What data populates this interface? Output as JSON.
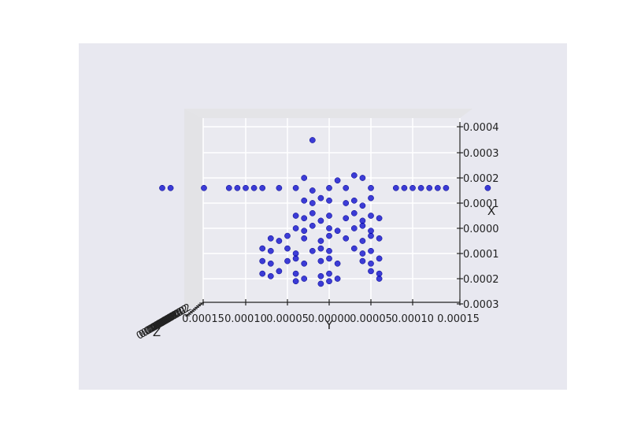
{
  "chart_data": {
    "type": "scatter",
    "projection": "3d",
    "title": "",
    "xlabel": "Y",
    "ylabel": "X",
    "zlabel": "Z",
    "grid": true,
    "y_axis_ticks": [
      "0.00015",
      "0.00010",
      "0.00005",
      "0.00000",
      "0.00005",
      "0.00010",
      "0.00015"
    ],
    "x_axis_ticks": [
      "0.0004",
      "0.0003",
      "0.0002",
      "0.0001",
      "0.0000",
      "0.0001",
      "0.0002",
      "0.0003"
    ],
    "z_axis_ticks": [
      "0.0002",
      "0.0002",
      "0.0002",
      "0.0002",
      "0.0002",
      "0.0002",
      "0.0002",
      "0.0002",
      "0.0002",
      "0.0002"
    ],
    "y_range": [
      -0.00016,
      0.00015
    ],
    "x_range": [
      -0.0004,
      0.0003
    ],
    "marker_color": "#0000cc",
    "background_color": "#e8e8f0",
    "series": [
      {
        "points": [
          [
            -2e-05,
            -0.00035
          ],
          [
            -0.0002,
            -0.00016
          ],
          [
            -0.00019,
            -0.00016
          ],
          [
            -0.00015,
            -0.00016
          ],
          [
            -0.00012,
            -0.00016
          ],
          [
            -0.00011,
            -0.00016
          ],
          [
            -0.0001,
            -0.00016
          ],
          [
            -9e-05,
            -0.00016
          ],
          [
            -8e-05,
            -0.00016
          ],
          [
            -6e-05,
            -0.00016
          ],
          [
            -4e-05,
            -0.00016
          ],
          [
            -2e-05,
            -0.00015
          ],
          [
            0.0,
            -0.00016
          ],
          [
            2e-05,
            -0.00016
          ],
          [
            5e-05,
            -0.00016
          ],
          [
            8e-05,
            -0.00016
          ],
          [
            9e-05,
            -0.00016
          ],
          [
            0.0001,
            -0.00016
          ],
          [
            0.00011,
            -0.00016
          ],
          [
            0.00012,
            -0.00016
          ],
          [
            0.00013,
            -0.00016
          ],
          [
            0.00014,
            -0.00016
          ],
          [
            0.00019,
            -0.00016
          ],
          [
            -3e-05,
            -0.0002
          ],
          [
            3e-05,
            -0.00021
          ],
          [
            4e-05,
            -0.0002
          ],
          [
            1e-05,
            -0.00019
          ],
          [
            -3e-05,
            -0.00011
          ],
          [
            -2e-05,
            -0.0001
          ],
          [
            -1e-05,
            -0.00012
          ],
          [
            0.0,
            -0.00011
          ],
          [
            2e-05,
            -0.0001
          ],
          [
            3e-05,
            -0.00011
          ],
          [
            4e-05,
            -9e-05
          ],
          [
            5e-05,
            -0.00012
          ],
          [
            -4e-05,
            -5e-05
          ],
          [
            -3e-05,
            -4e-05
          ],
          [
            -2e-05,
            -6e-05
          ],
          [
            -1e-05,
            -3e-05
          ],
          [
            0.0,
            -5e-05
          ],
          [
            2e-05,
            -4e-05
          ],
          [
            3e-05,
            -6e-05
          ],
          [
            4e-05,
            -3e-05
          ],
          [
            5e-05,
            -5e-05
          ],
          [
            6e-05,
            -4e-05
          ],
          [
            -4e-05,
            0.0
          ],
          [
            -3e-05,
            1e-05
          ],
          [
            -2e-05,
            -1e-05
          ],
          [
            0.0,
            0.0
          ],
          [
            1e-05,
            1e-05
          ],
          [
            3e-05,
            0.0
          ],
          [
            4e-05,
            -1e-05
          ],
          [
            5e-05,
            1e-05
          ],
          [
            -7e-05,
            4e-05
          ],
          [
            -6e-05,
            5e-05
          ],
          [
            -5e-05,
            3e-05
          ],
          [
            -3e-05,
            4e-05
          ],
          [
            -1e-05,
            5e-05
          ],
          [
            0.0,
            3e-05
          ],
          [
            2e-05,
            4e-05
          ],
          [
            4e-05,
            5e-05
          ],
          [
            5e-05,
            3e-05
          ],
          [
            6e-05,
            4e-05
          ],
          [
            -8e-05,
            8e-05
          ],
          [
            -7e-05,
            9e-05
          ],
          [
            -5e-05,
            8e-05
          ],
          [
            -4e-05,
            0.0001
          ],
          [
            -2e-05,
            9e-05
          ],
          [
            -1e-05,
            8e-05
          ],
          [
            0.0,
            9e-05
          ],
          [
            3e-05,
            8e-05
          ],
          [
            4e-05,
            0.0001
          ],
          [
            5e-05,
            9e-05
          ],
          [
            -8e-05,
            0.00013
          ],
          [
            -7e-05,
            0.00014
          ],
          [
            -5e-05,
            0.00013
          ],
          [
            -4e-05,
            0.00012
          ],
          [
            -3e-05,
            0.00014
          ],
          [
            -1e-05,
            0.00013
          ],
          [
            0.0,
            0.00012
          ],
          [
            1e-05,
            0.00014
          ],
          [
            4e-05,
            0.00013
          ],
          [
            5e-05,
            0.00014
          ],
          [
            6e-05,
            0.00012
          ],
          [
            -8e-05,
            0.00018
          ],
          [
            -7e-05,
            0.00019
          ],
          [
            -6e-05,
            0.00017
          ],
          [
            -4e-05,
            0.00018
          ],
          [
            -3e-05,
            0.0002
          ],
          [
            -1e-05,
            0.00019
          ],
          [
            0.0,
            0.00018
          ],
          [
            1e-05,
            0.0002
          ],
          [
            5e-05,
            0.00017
          ],
          [
            6e-05,
            0.00018
          ],
          [
            6e-05,
            0.0002
          ],
          [
            -4e-05,
            0.00021
          ],
          [
            -1e-05,
            0.00022
          ],
          [
            0.0,
            0.00021
          ]
        ]
      }
    ]
  }
}
